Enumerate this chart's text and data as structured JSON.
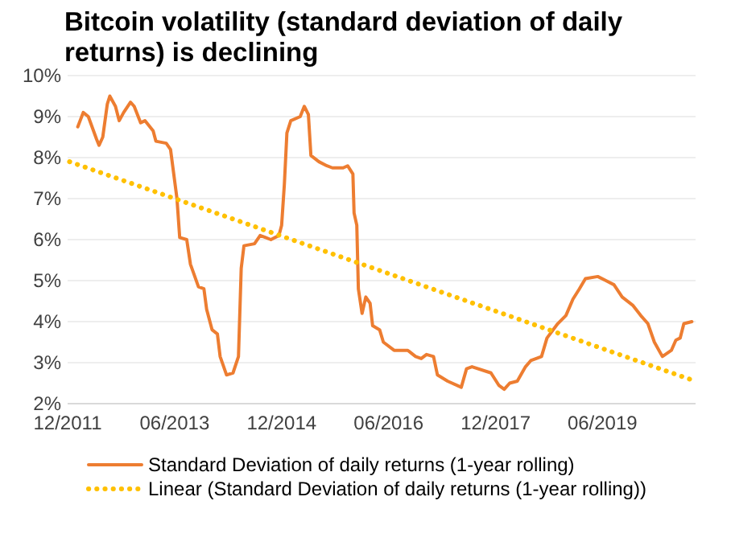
{
  "chart_data": {
    "type": "line",
    "title": "Bitcoin volatility (standard deviation of daily returns) is declining",
    "xlim": [
      "2011-12-01",
      "2020-09-20"
    ],
    "xticks": [
      {
        "value": "2011-12-01",
        "label": "12/2011"
      },
      {
        "value": "2013-06-01",
        "label": "06/2013"
      },
      {
        "value": "2014-12-01",
        "label": "12/2014"
      },
      {
        "value": "2016-06-01",
        "label": "06/2016"
      },
      {
        "value": "2017-12-01",
        "label": "12/2017"
      },
      {
        "value": "2019-06-01",
        "label": "06/2019"
      }
    ],
    "ylim": [
      2,
      10
    ],
    "yticks": [
      {
        "value": 2,
        "label": "2%"
      },
      {
        "value": 3,
        "label": "3%"
      },
      {
        "value": 4,
        "label": "4%"
      },
      {
        "value": 5,
        "label": "5%"
      },
      {
        "value": 6,
        "label": "6%"
      },
      {
        "value": 7,
        "label": "7%"
      },
      {
        "value": 8,
        "label": "8%"
      },
      {
        "value": 9,
        "label": "9%"
      },
      {
        "value": 10,
        "label": "10%"
      }
    ],
    "grid": "y",
    "legend": "bottom",
    "series": [
      {
        "name": "Standard Deviation of daily returns (1-year rolling)",
        "color": "#ed7d31",
        "line_style": "solid",
        "x": [
          "2012-01-22",
          "2012-02-19",
          "2012-03-16",
          "2012-04-27",
          "2012-05-10",
          "2012-05-29",
          "2012-06-21",
          "2012-07-04",
          "2012-08-02",
          "2012-08-21",
          "2012-09-13",
          "2012-10-18",
          "2012-11-06",
          "2012-12-09",
          "2012-12-31",
          "2013-02-11",
          "2013-02-25",
          "2013-04-19",
          "2013-05-11",
          "2013-06-13",
          "2013-06-27",
          "2013-08-02",
          "2013-08-21",
          "2013-10-01",
          "2013-10-29",
          "2013-11-12",
          "2013-12-10",
          "2014-01-06",
          "2014-01-20",
          "2014-02-22",
          "2014-03-27",
          "2014-04-24",
          "2014-05-08",
          "2014-05-22",
          "2014-07-15",
          "2014-08-13",
          "2014-09-10",
          "2014-10-07",
          "2014-11-17",
          "2014-12-01",
          "2014-12-15",
          "2014-12-28",
          "2015-01-17",
          "2015-03-06",
          "2015-03-27",
          "2015-04-17",
          "2015-04-30",
          "2015-06-10",
          "2015-07-21",
          "2015-08-18",
          "2015-10-12",
          "2015-11-04",
          "2015-12-01",
          "2015-12-07",
          "2015-12-21",
          "2015-12-29",
          "2016-01-17",
          "2016-02-05",
          "2016-02-27",
          "2016-03-11",
          "2016-04-16",
          "2016-05-05",
          "2016-06-29",
          "2016-09-07",
          "2016-10-17",
          "2016-11-15",
          "2016-12-12",
          "2017-01-17",
          "2017-02-06",
          "2017-03-30",
          "2017-06-08",
          "2017-07-05",
          "2017-08-02",
          "2017-11-07",
          "2017-12-17",
          "2018-01-14",
          "2018-02-11",
          "2018-03-22",
          "2018-05-03",
          "2018-05-30",
          "2018-06-27",
          "2018-07-24",
          "2018-08-21",
          "2018-10-15",
          "2018-11-26",
          "2019-01-01",
          "2019-02-03",
          "2019-03-06",
          "2019-05-08",
          "2019-06-19",
          "2019-07-30",
          "2019-09-10",
          "2019-11-03",
          "2019-12-14",
          "2020-01-20",
          "2020-02-22",
          "2020-04-03",
          "2020-05-19",
          "2020-06-11",
          "2020-07-03",
          "2020-07-22",
          "2020-09-01"
        ],
        "values": [
          8.75,
          9.1,
          9.0,
          8.45,
          8.3,
          8.5,
          9.3,
          9.5,
          9.25,
          8.9,
          9.1,
          9.35,
          9.25,
          8.85,
          8.9,
          8.65,
          8.4,
          8.35,
          8.2,
          7.0,
          6.05,
          6.0,
          5.4,
          4.85,
          4.8,
          4.3,
          3.8,
          3.7,
          3.15,
          2.7,
          2.75,
          3.15,
          5.3,
          5.85,
          5.9,
          6.1,
          6.05,
          6.0,
          6.1,
          6.35,
          7.35,
          8.6,
          8.9,
          9.0,
          9.25,
          9.05,
          8.05,
          7.9,
          7.8,
          7.75,
          7.75,
          7.8,
          7.6,
          6.65,
          6.35,
          4.8,
          4.2,
          4.6,
          4.45,
          3.9,
          3.8,
          3.5,
          3.3,
          3.3,
          3.15,
          3.1,
          3.2,
          3.15,
          2.7,
          2.55,
          2.4,
          2.85,
          2.9,
          2.75,
          2.45,
          2.35,
          2.5,
          2.55,
          2.9,
          3.05,
          3.1,
          3.15,
          3.6,
          3.95,
          4.15,
          4.55,
          4.8,
          5.05,
          5.1,
          5.0,
          4.9,
          4.6,
          4.4,
          4.15,
          3.95,
          3.5,
          3.15,
          3.3,
          3.55,
          3.6,
          3.95,
          4.0
        ]
      },
      {
        "name": "Linear (Standard Deviation of daily returns (1-year rolling))",
        "color": "#ffc000",
        "line_style": "dotted",
        "x": [
          "2011-12-11",
          "2020-09-18"
        ],
        "values": [
          7.9,
          2.55
        ]
      }
    ]
  }
}
